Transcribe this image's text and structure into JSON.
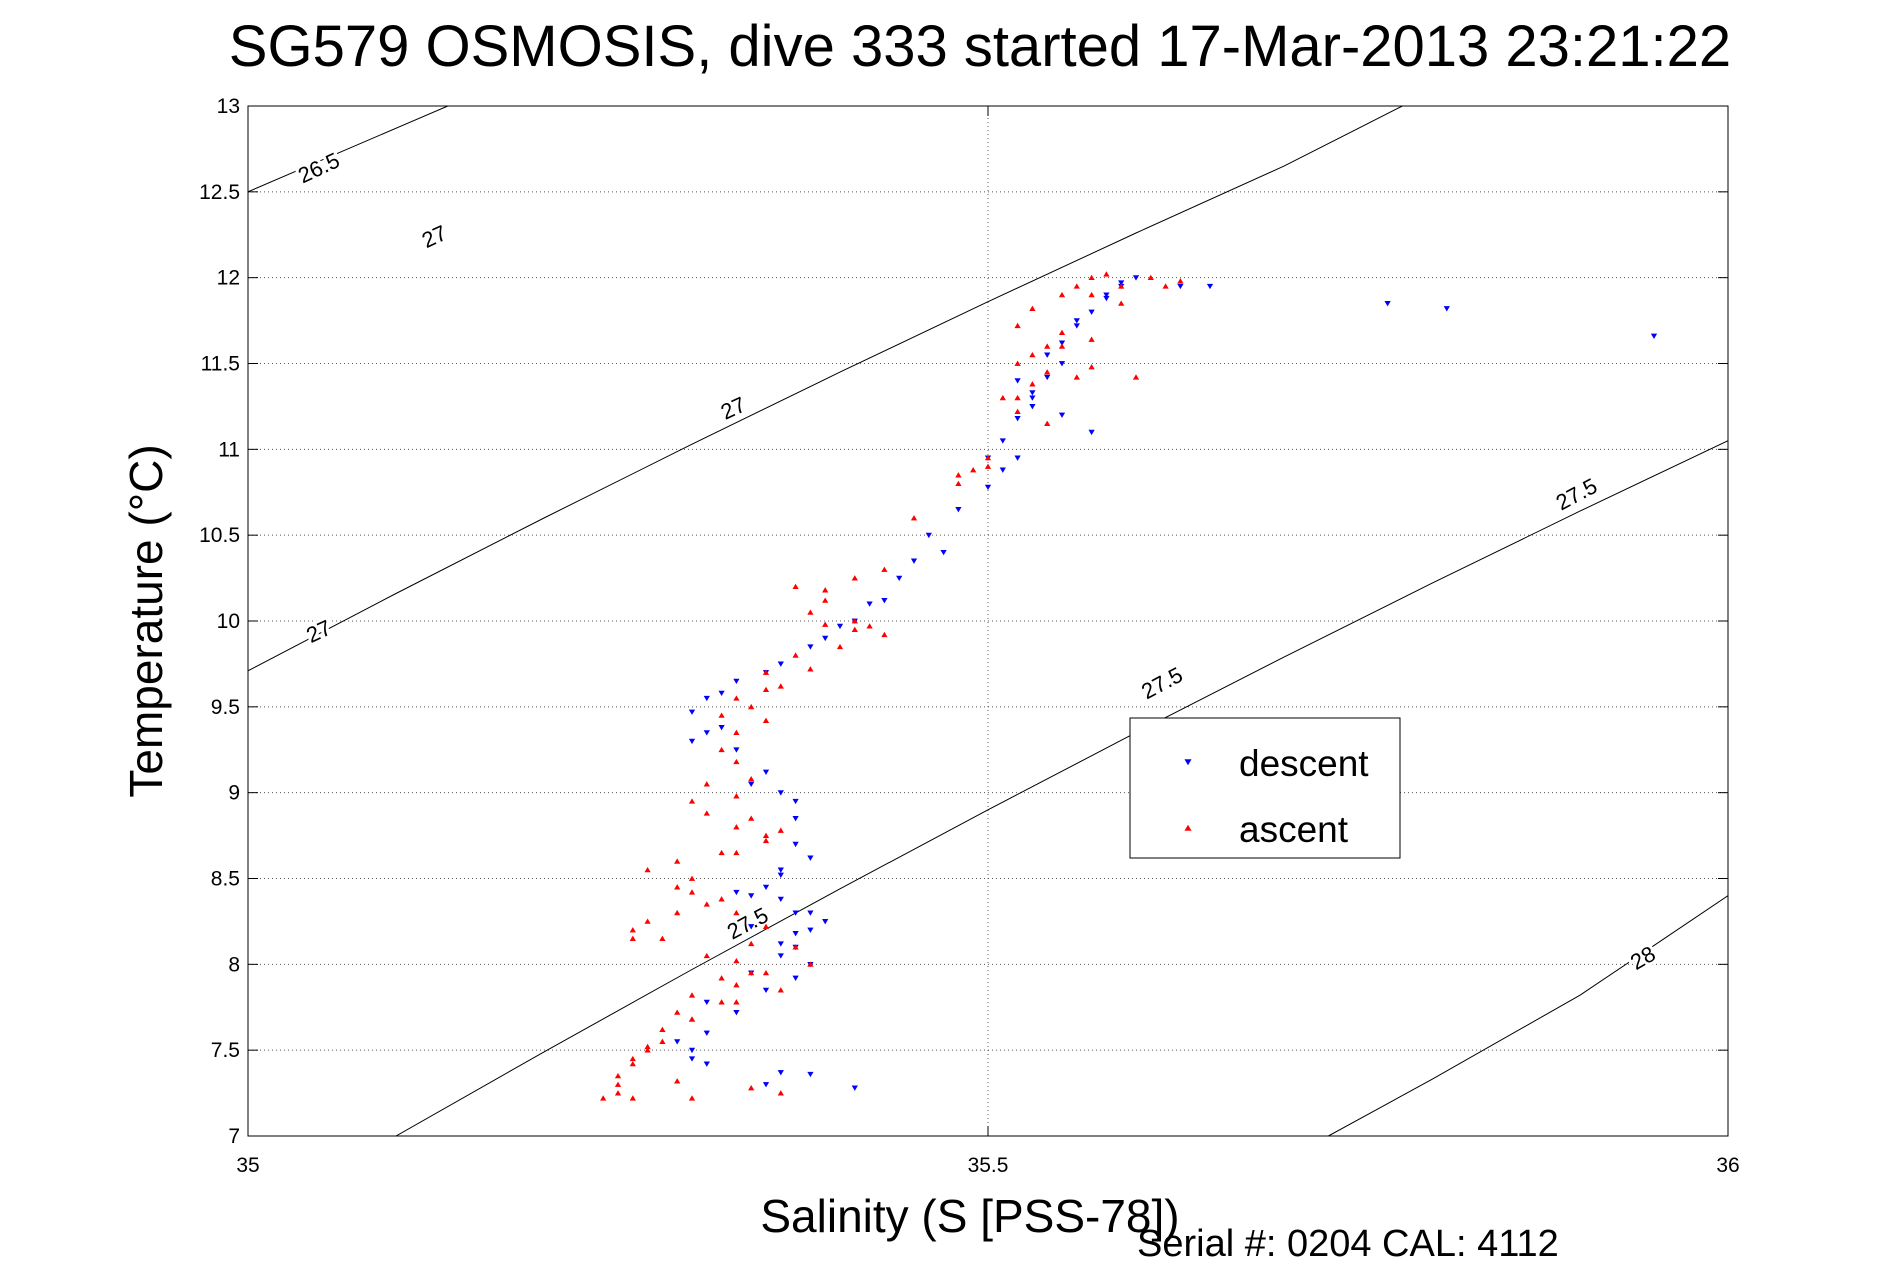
{
  "chart_data": {
    "type": "scatter",
    "title": "SG579 OSMOSIS, dive 333 started 17-Mar-2013 23:21:22",
    "xlabel": "Salinity (S [PSS-78])",
    "ylabel": "Temperature (°C)",
    "xlim": [
      35,
      36
    ],
    "ylim": [
      7,
      13
    ],
    "x_ticks": [
      "35",
      "35.5",
      "36"
    ],
    "y_ticks": [
      "7",
      "7.5",
      "8",
      "8.5",
      "9",
      "9.5",
      "10",
      "10.5",
      "11",
      "11.5",
      "12",
      "12.5",
      "13"
    ],
    "grid": true,
    "legend_position": "center-right",
    "footer": "Serial #: 0204  CAL: 4112",
    "density_contours": {
      "color": "#000000",
      "lines": [
        {
          "level": "26.5",
          "points": [
            [
              35.0,
              12.5
            ],
            [
              35.135,
              13.0
            ]
          ]
        },
        {
          "level": "27",
          "points": [
            [
              35.0,
              9.71
            ],
            [
              35.1,
              10.16
            ],
            [
              35.2,
              10.6
            ],
            [
              35.3,
              11.03
            ],
            [
              35.4,
              11.45
            ],
            [
              35.5,
              11.86
            ],
            [
              35.6,
              12.26
            ],
            [
              35.7,
              12.65
            ],
            [
              35.78,
              13.0
            ]
          ]
        },
        {
          "level": "27.5",
          "points": [
            [
              35.1,
              7.0
            ],
            [
              35.2,
              7.49
            ],
            [
              35.3,
              7.97
            ],
            [
              35.4,
              8.44
            ],
            [
              35.5,
              8.9
            ],
            [
              35.6,
              9.35
            ],
            [
              35.7,
              9.79
            ],
            [
              35.8,
              10.22
            ],
            [
              35.9,
              10.64
            ],
            [
              36.0,
              11.05
            ],
            [
              36.0,
              11.3
            ]
          ]
        },
        {
          "level": "28",
          "points": [
            [
              35.73,
              7.0
            ],
            [
              35.8,
              7.33
            ],
            [
              35.9,
              7.82
            ],
            [
              36.0,
              8.4
            ]
          ]
        }
      ],
      "labels": [
        {
          "text": "26.5",
          "x": 35.05,
          "y": 12.6,
          "angle": -25
        },
        {
          "text": "27",
          "x": 35.128,
          "y": 12.2,
          "angle": -25
        },
        {
          "text": "27",
          "x": 35.33,
          "y": 11.2,
          "angle": -25
        },
        {
          "text": "27",
          "x": 35.05,
          "y": 9.9,
          "angle": -25
        },
        {
          "text": "27.5",
          "x": 35.9,
          "y": 10.7,
          "angle": -28
        },
        {
          "text": "27.5",
          "x": 35.62,
          "y": 9.6,
          "angle": -28
        },
        {
          "text": "27.5",
          "x": 35.34,
          "y": 8.2,
          "angle": -28
        },
        {
          "text": "28",
          "x": 35.945,
          "y": 8.0,
          "angle": -30
        }
      ]
    },
    "series": [
      {
        "name": "descent",
        "color": "#0000ff",
        "marker": "triangle-down",
        "x": [
          35.6,
          35.59,
          35.58,
          35.57,
          35.56,
          35.55,
          35.55,
          35.54,
          35.53,
          35.53,
          35.52,
          35.51,
          35.52,
          35.51,
          35.5,
          35.48,
          35.46,
          35.45,
          35.44,
          35.42,
          35.4,
          35.38,
          35.36,
          35.33,
          35.31,
          35.3,
          35.31,
          35.33,
          35.35,
          35.36,
          35.37,
          35.37,
          35.36,
          35.35,
          35.36,
          35.38,
          35.39,
          35.37,
          35.36,
          35.38,
          35.37,
          35.35,
          35.33,
          35.31,
          35.3,
          35.31,
          35.36,
          35.41,
          35.63,
          35.65,
          35.77,
          35.81,
          35.95,
          35.59,
          35.58,
          35.56,
          35.54,
          35.52,
          35.53,
          35.55,
          35.57,
          35.5,
          35.47,
          35.43,
          35.41,
          35.39,
          35.35,
          35.32,
          35.3,
          35.32,
          35.34,
          35.37,
          35.38,
          35.36,
          35.34,
          35.37,
          35.38,
          35.36,
          35.34,
          35.31,
          35.29,
          35.3,
          35.35,
          35.38,
          35.34,
          35.37,
          35.33
        ],
        "y": [
          12.0,
          11.95,
          11.88,
          11.8,
          11.72,
          11.62,
          11.5,
          11.42,
          11.33,
          11.25,
          11.18,
          11.05,
          10.95,
          10.88,
          10.78,
          10.65,
          10.5,
          10.35,
          10.25,
          10.1,
          9.97,
          9.85,
          9.75,
          9.65,
          9.55,
          9.47,
          9.35,
          9.25,
          9.12,
          9.0,
          8.85,
          8.7,
          8.55,
          8.45,
          8.38,
          8.3,
          8.25,
          8.18,
          8.12,
          8.0,
          7.92,
          7.85,
          7.72,
          7.6,
          7.45,
          7.42,
          7.37,
          7.28,
          11.95,
          11.95,
          11.85,
          11.82,
          11.66,
          11.97,
          11.9,
          11.75,
          11.55,
          11.4,
          11.3,
          11.2,
          11.1,
          10.95,
          10.4,
          10.12,
          10.0,
          9.9,
          9.7,
          9.58,
          9.3,
          9.38,
          9.05,
          8.95,
          8.62,
          8.52,
          8.4,
          8.3,
          8.2,
          8.05,
          7.95,
          7.78,
          7.55,
          7.5,
          7.3,
          7.36,
          8.22,
          8.1,
          8.42
        ]
      },
      {
        "name": "ascent",
        "color": "#ff0000",
        "marker": "triangle-up",
        "x": [
          35.58,
          35.57,
          35.56,
          35.55,
          35.53,
          35.52,
          35.55,
          35.57,
          35.54,
          35.52,
          35.54,
          35.56,
          35.53,
          35.51,
          35.52,
          35.54,
          35.5,
          35.49,
          35.48,
          35.43,
          35.41,
          35.39,
          35.38,
          35.39,
          35.41,
          35.43,
          35.4,
          35.37,
          35.35,
          35.34,
          35.35,
          35.33,
          35.32,
          35.33,
          35.34,
          35.33,
          35.31,
          35.33,
          35.35,
          35.32,
          35.29,
          35.27,
          35.29,
          35.3,
          35.32,
          35.33,
          35.35,
          35.34,
          35.33,
          35.32,
          35.3,
          35.29,
          35.28,
          35.27,
          35.26,
          35.25,
          35.29,
          35.34,
          35.36,
          35.37,
          35.38,
          35.35,
          35.33,
          35.32,
          35.3,
          35.28,
          35.27,
          35.26,
          35.25,
          35.26,
          35.3,
          35.25,
          35.24,
          35.59,
          35.61,
          35.63,
          35.57,
          35.59,
          35.62,
          35.55,
          35.53,
          35.57,
          35.6,
          35.52,
          35.5,
          35.48,
          35.45,
          35.37,
          35.39,
          35.41,
          35.42,
          35.38,
          35.36,
          35.35,
          35.33,
          35.32,
          35.31,
          35.3,
          35.34,
          35.36,
          35.35,
          35.33,
          35.3,
          35.31,
          35.29,
          35.27,
          35.26,
          35.26,
          35.28,
          35.31,
          35.34,
          35.36,
          35.33,
          35.3
        ],
        "y": [
          12.02,
          12.0,
          11.95,
          11.9,
          11.82,
          11.72,
          11.68,
          11.64,
          11.6,
          11.5,
          11.45,
          11.42,
          11.38,
          11.3,
          11.22,
          11.15,
          10.95,
          10.88,
          10.8,
          10.3,
          10.25,
          10.18,
          10.05,
          9.98,
          9.95,
          9.92,
          9.85,
          9.8,
          9.6,
          9.5,
          9.42,
          9.35,
          9.25,
          9.18,
          9.08,
          8.98,
          8.88,
          8.8,
          8.72,
          8.65,
          8.6,
          8.55,
          8.45,
          8.42,
          8.38,
          8.3,
          8.22,
          8.12,
          8.02,
          7.92,
          7.82,
          7.72,
          7.62,
          7.52,
          7.42,
          7.35,
          7.32,
          7.28,
          7.25,
          8.1,
          8.0,
          7.95,
          7.88,
          7.78,
          7.68,
          7.55,
          7.5,
          7.45,
          7.3,
          7.22,
          7.22,
          7.25,
          7.22,
          11.95,
          12.0,
          11.98,
          11.9,
          11.85,
          11.95,
          11.6,
          11.55,
          11.48,
          11.42,
          11.3,
          10.9,
          10.85,
          10.6,
          10.2,
          10.12,
          10.0,
          9.97,
          9.72,
          9.62,
          9.7,
          9.55,
          9.45,
          9.05,
          8.95,
          8.85,
          8.78,
          8.75,
          8.65,
          8.5,
          8.35,
          8.3,
          8.25,
          8.2,
          8.15,
          8.15,
          8.05,
          7.95,
          7.85,
          7.78,
          7.68
        ]
      }
    ]
  }
}
